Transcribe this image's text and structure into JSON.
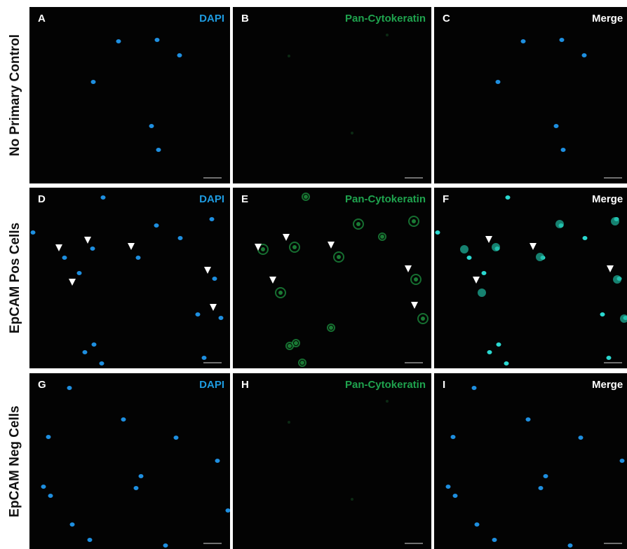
{
  "rows": [
    {
      "label": "No Primary Control",
      "panels": [
        {
          "letter": "A",
          "channel": "DAPI"
        },
        {
          "letter": "B",
          "channel": "Pan-Cytokeratin"
        },
        {
          "letter": "C",
          "channel": "Merge"
        }
      ]
    },
    {
      "label": "EpCAM Pos Cells",
      "panels": [
        {
          "letter": "D",
          "channel": "DAPI"
        },
        {
          "letter": "E",
          "channel": "Pan-Cytokeratin"
        },
        {
          "letter": "F",
          "channel": "Merge"
        }
      ]
    },
    {
      "label": "EpCAM Neg Cells",
      "panels": [
        {
          "letter": "G",
          "channel": "DAPI"
        },
        {
          "letter": "H",
          "channel": "Pan-Cytokeratin"
        },
        {
          "letter": "I",
          "channel": "Merge"
        }
      ]
    }
  ]
}
